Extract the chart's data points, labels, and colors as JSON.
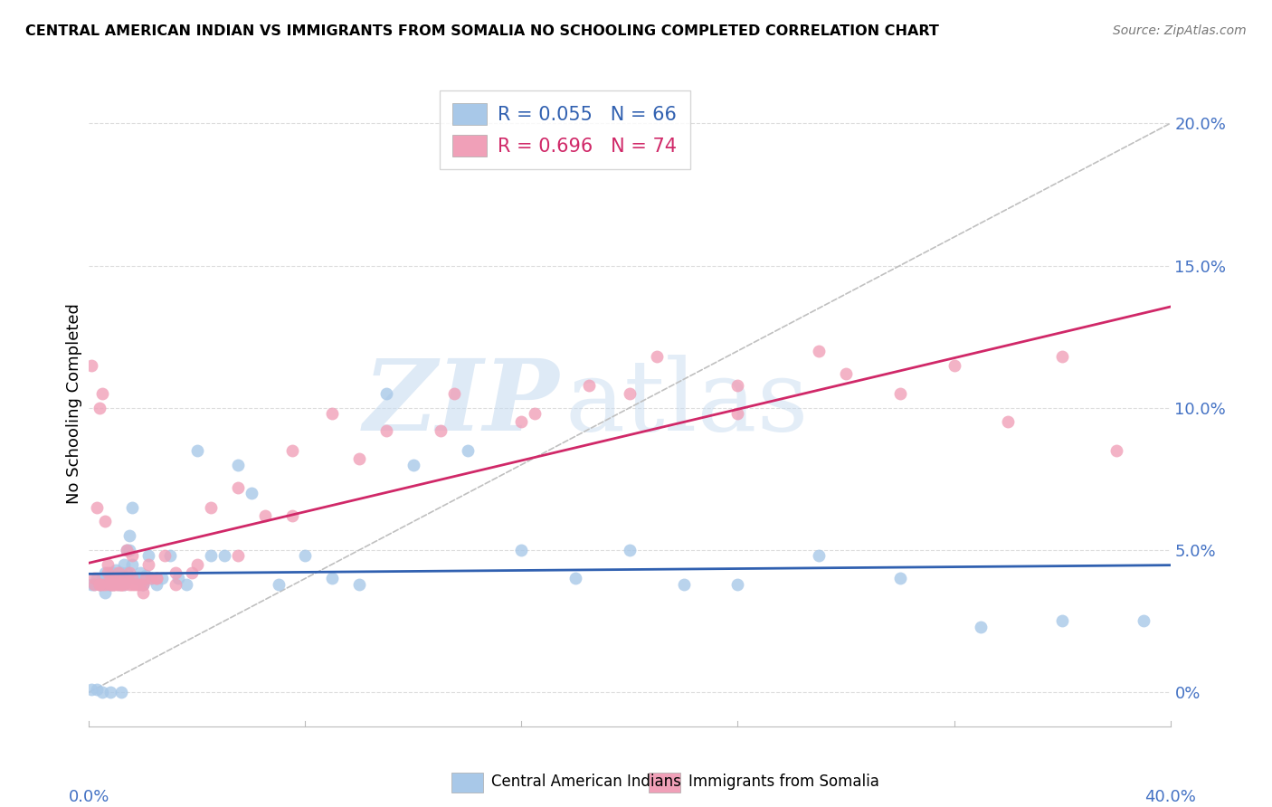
{
  "title": "CENTRAL AMERICAN INDIAN VS IMMIGRANTS FROM SOMALIA NO SCHOOLING COMPLETED CORRELATION CHART",
  "source": "Source: ZipAtlas.com",
  "ylabel": "No Schooling Completed",
  "xmin": 0.0,
  "xmax": 0.4,
  "ymin": -0.012,
  "ymax": 0.215,
  "blue_color": "#A8C8E8",
  "pink_color": "#F0A0B8",
  "blue_line_color": "#3060B0",
  "pink_line_color": "#D02868",
  "diag_line_color": "#C0C0C0",
  "legend_blue_r": "0.055",
  "legend_blue_n": "66",
  "legend_pink_r": "0.696",
  "legend_pink_n": "74",
  "watermark_zip": "ZIP",
  "watermark_atlas": "atlas",
  "footer_blue": "Central American Indians",
  "footer_pink": "Immigrants from Somalia",
  "background_color": "#FFFFFF",
  "grid_color": "#DDDDDD",
  "blue_x": [
    0.001,
    0.002,
    0.003,
    0.004,
    0.005,
    0.006,
    0.006,
    0.007,
    0.007,
    0.008,
    0.008,
    0.009,
    0.009,
    0.01,
    0.01,
    0.011,
    0.012,
    0.012,
    0.013,
    0.013,
    0.014,
    0.014,
    0.015,
    0.015,
    0.016,
    0.016,
    0.017,
    0.018,
    0.019,
    0.02,
    0.021,
    0.022,
    0.023,
    0.025,
    0.027,
    0.03,
    0.033,
    0.036,
    0.04,
    0.045,
    0.05,
    0.055,
    0.06,
    0.07,
    0.08,
    0.09,
    0.1,
    0.11,
    0.12,
    0.14,
    0.16,
    0.18,
    0.2,
    0.22,
    0.24,
    0.27,
    0.3,
    0.33,
    0.36,
    0.39,
    0.001,
    0.003,
    0.005,
    0.008,
    0.012,
    0.02
  ],
  "blue_y": [
    0.038,
    0.038,
    0.04,
    0.038,
    0.04,
    0.042,
    0.035,
    0.038,
    0.04,
    0.042,
    0.038,
    0.042,
    0.038,
    0.04,
    0.043,
    0.038,
    0.04,
    0.042,
    0.045,
    0.038,
    0.05,
    0.042,
    0.05,
    0.055,
    0.045,
    0.065,
    0.04,
    0.04,
    0.042,
    0.038,
    0.041,
    0.048,
    0.04,
    0.038,
    0.04,
    0.048,
    0.04,
    0.038,
    0.085,
    0.048,
    0.048,
    0.08,
    0.07,
    0.038,
    0.048,
    0.04,
    0.038,
    0.105,
    0.08,
    0.085,
    0.05,
    0.04,
    0.05,
    0.038,
    0.038,
    0.048,
    0.04,
    0.023,
    0.025,
    0.025,
    0.001,
    0.001,
    0.0,
    0.0,
    0.0,
    0.038
  ],
  "pink_x": [
    0.001,
    0.002,
    0.003,
    0.004,
    0.004,
    0.005,
    0.005,
    0.006,
    0.006,
    0.007,
    0.007,
    0.008,
    0.008,
    0.009,
    0.009,
    0.01,
    0.01,
    0.011,
    0.011,
    0.012,
    0.012,
    0.013,
    0.013,
    0.014,
    0.014,
    0.015,
    0.015,
    0.016,
    0.016,
    0.017,
    0.018,
    0.019,
    0.02,
    0.021,
    0.022,
    0.023,
    0.025,
    0.028,
    0.032,
    0.038,
    0.045,
    0.055,
    0.065,
    0.075,
    0.09,
    0.11,
    0.135,
    0.16,
    0.185,
    0.21,
    0.24,
    0.27,
    0.3,
    0.34,
    0.38,
    0.002,
    0.004,
    0.008,
    0.012,
    0.016,
    0.02,
    0.025,
    0.032,
    0.04,
    0.055,
    0.075,
    0.1,
    0.13,
    0.165,
    0.2,
    0.24,
    0.28,
    0.32,
    0.36
  ],
  "pink_y": [
    0.115,
    0.04,
    0.065,
    0.038,
    0.1,
    0.038,
    0.105,
    0.038,
    0.06,
    0.042,
    0.045,
    0.038,
    0.04,
    0.038,
    0.038,
    0.038,
    0.04,
    0.038,
    0.042,
    0.038,
    0.038,
    0.04,
    0.038,
    0.05,
    0.04,
    0.038,
    0.042,
    0.04,
    0.048,
    0.038,
    0.038,
    0.038,
    0.038,
    0.04,
    0.045,
    0.04,
    0.04,
    0.048,
    0.038,
    0.042,
    0.065,
    0.072,
    0.062,
    0.085,
    0.098,
    0.092,
    0.105,
    0.095,
    0.108,
    0.118,
    0.098,
    0.12,
    0.105,
    0.095,
    0.085,
    0.038,
    0.038,
    0.038,
    0.038,
    0.038,
    0.035,
    0.04,
    0.042,
    0.045,
    0.048,
    0.062,
    0.082,
    0.092,
    0.098,
    0.105,
    0.108,
    0.112,
    0.115,
    0.118
  ]
}
